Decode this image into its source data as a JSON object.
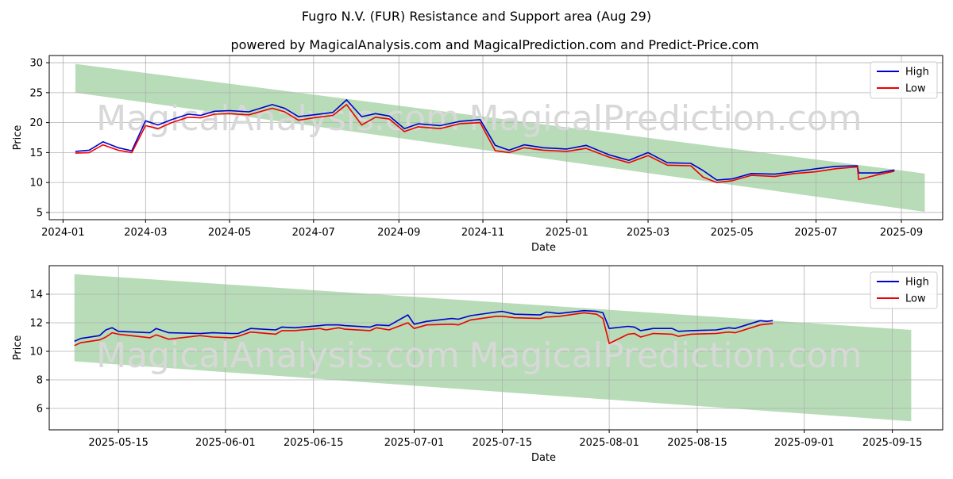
{
  "title": "Fugro N.V. (FUR) Resistance and Support area (Aug 29)",
  "subtitle": "powered by MagicalAnalysis.com and MagicalPrediction.com and Predict-Price.com",
  "watermark_left": "MagicalAnalysis.com",
  "watermark_right": "MagicalPrediction.com",
  "colors": {
    "high": "#0000cc",
    "low": "#ee0000",
    "band": "#9fd09f",
    "grid": "#b0b0b0"
  },
  "chart_data": [
    {
      "type": "line",
      "xlabel": "Date",
      "ylabel": "Price",
      "grid": true,
      "legend": "top-right",
      "x_domain": [
        "2023-12-22",
        "2025-10-01"
      ],
      "ylim": [
        3.8,
        31.2
      ],
      "x_ticks": [
        "2024-01",
        "2024-03",
        "2024-05",
        "2024-07",
        "2024-09",
        "2024-11",
        "2025-01",
        "2025-03",
        "2025-05",
        "2025-07",
        "2025-09"
      ],
      "x_tick_dates": [
        "2024-01-01",
        "2024-03-01",
        "2024-05-01",
        "2024-07-01",
        "2024-09-01",
        "2024-11-01",
        "2025-01-01",
        "2025-03-01",
        "2025-05-01",
        "2025-07-01",
        "2025-09-01"
      ],
      "y_ticks": [
        5,
        10,
        15,
        20,
        25,
        30
      ],
      "band": {
        "start": "2024-01-10",
        "end": "2025-09-18",
        "upper": [
          29.8,
          11.5
        ],
        "lower": [
          25.0,
          5.1
        ]
      },
      "series": [
        {
          "name": "High",
          "x": [
            "2024-01-10",
            "2024-01-20",
            "2024-01-30",
            "2024-02-10",
            "2024-02-20",
            "2024-03-01",
            "2024-03-10",
            "2024-03-20",
            "2024-04-01",
            "2024-04-10",
            "2024-04-20",
            "2024-05-01",
            "2024-05-15",
            "2024-06-01",
            "2024-06-10",
            "2024-06-20",
            "2024-07-01",
            "2024-07-15",
            "2024-07-25",
            "2024-08-05",
            "2024-08-15",
            "2024-08-25",
            "2024-09-05",
            "2024-09-15",
            "2024-10-01",
            "2024-10-15",
            "2024-10-30",
            "2024-11-10",
            "2024-11-20",
            "2024-12-01",
            "2024-12-15",
            "2025-01-01",
            "2025-01-15",
            "2025-02-01",
            "2025-02-15",
            "2025-03-01",
            "2025-03-15",
            "2025-04-01",
            "2025-04-10",
            "2025-04-20",
            "2025-05-01",
            "2025-05-15",
            "2025-06-01",
            "2025-06-15",
            "2025-07-01",
            "2025-07-15",
            "2025-07-31",
            "2025-08-01",
            "2025-08-15",
            "2025-08-27"
          ],
          "values": [
            15.2,
            15.4,
            16.8,
            15.8,
            15.3,
            20.3,
            19.6,
            20.5,
            21.4,
            21.2,
            21.9,
            22.0,
            21.8,
            23.0,
            22.4,
            21.0,
            21.3,
            21.7,
            23.8,
            21.0,
            21.5,
            21.1,
            19.0,
            19.8,
            19.5,
            20.2,
            20.5,
            16.2,
            15.4,
            16.3,
            15.8,
            15.6,
            16.2,
            14.6,
            13.7,
            15.0,
            13.3,
            13.2,
            12.0,
            10.4,
            10.6,
            11.5,
            11.4,
            11.8,
            12.3,
            12.7,
            12.8,
            11.6,
            11.6,
            12.1
          ]
        },
        {
          "name": "Low",
          "x": [
            "2024-01-10",
            "2024-01-20",
            "2024-01-30",
            "2024-02-10",
            "2024-02-20",
            "2024-03-01",
            "2024-03-10",
            "2024-03-20",
            "2024-04-01",
            "2024-04-10",
            "2024-04-20",
            "2024-05-01",
            "2024-05-15",
            "2024-06-01",
            "2024-06-10",
            "2024-06-20",
            "2024-07-01",
            "2024-07-15",
            "2024-07-25",
            "2024-08-05",
            "2024-08-15",
            "2024-08-25",
            "2024-09-05",
            "2024-09-15",
            "2024-10-01",
            "2024-10-15",
            "2024-10-30",
            "2024-11-10",
            "2024-11-20",
            "2024-12-01",
            "2024-12-15",
            "2025-01-01",
            "2025-01-15",
            "2025-02-01",
            "2025-02-15",
            "2025-03-01",
            "2025-03-15",
            "2025-04-01",
            "2025-04-10",
            "2025-04-20",
            "2025-05-01",
            "2025-05-15",
            "2025-06-01",
            "2025-06-15",
            "2025-07-01",
            "2025-07-15",
            "2025-07-31",
            "2025-08-01",
            "2025-08-15",
            "2025-08-27"
          ],
          "values": [
            14.9,
            15.0,
            16.3,
            15.4,
            15.0,
            19.5,
            19.0,
            20.0,
            20.9,
            20.8,
            21.4,
            21.5,
            21.3,
            22.4,
            21.8,
            20.4,
            20.8,
            21.2,
            23.0,
            19.6,
            20.9,
            20.6,
            18.5,
            19.3,
            19.0,
            19.8,
            20.0,
            15.3,
            15.0,
            15.8,
            15.4,
            15.2,
            15.7,
            14.2,
            13.3,
            14.5,
            12.9,
            12.8,
            10.9,
            10.0,
            10.3,
            11.2,
            11.0,
            11.5,
            11.8,
            12.3,
            12.6,
            10.5,
            11.3,
            11.9
          ]
        }
      ]
    },
    {
      "type": "line",
      "xlabel": "Date",
      "ylabel": "Price",
      "grid": true,
      "legend": "top-right",
      "x_domain": [
        "2025-05-04",
        "2025-09-23"
      ],
      "ylim": [
        4.5,
        16.0
      ],
      "x_ticks": [
        "2025-05-15",
        "2025-06-01",
        "2025-06-15",
        "2025-07-01",
        "2025-07-15",
        "2025-08-01",
        "2025-08-15",
        "2025-09-01",
        "2025-09-15"
      ],
      "x_tick_dates": [
        "2025-05-15",
        "2025-06-01",
        "2025-06-15",
        "2025-07-01",
        "2025-07-15",
        "2025-08-01",
        "2025-08-15",
        "2025-09-01",
        "2025-09-15"
      ],
      "y_ticks": [
        6,
        8,
        10,
        12,
        14
      ],
      "band": {
        "start": "2025-05-08",
        "end": "2025-09-18",
        "upper": [
          15.4,
          11.5
        ],
        "lower": [
          9.3,
          5.1
        ]
      },
      "series": [
        {
          "name": "High",
          "x": [
            "2025-05-08",
            "2025-05-09",
            "2025-05-12",
            "2025-05-13",
            "2025-05-14",
            "2025-05-15",
            "2025-05-20",
            "2025-05-21",
            "2025-05-23",
            "2025-05-28",
            "2025-05-30",
            "2025-06-02",
            "2025-06-03",
            "2025-06-05",
            "2025-06-09",
            "2025-06-10",
            "2025-06-12",
            "2025-06-16",
            "2025-06-17",
            "2025-06-19",
            "2025-06-20",
            "2025-06-24",
            "2025-06-25",
            "2025-06-27",
            "2025-06-30",
            "2025-07-01",
            "2025-07-03",
            "2025-07-07",
            "2025-07-08",
            "2025-07-10",
            "2025-07-14",
            "2025-07-15",
            "2025-07-17",
            "2025-07-21",
            "2025-07-22",
            "2025-07-24",
            "2025-07-28",
            "2025-07-30",
            "2025-07-31",
            "2025-08-01",
            "2025-08-04",
            "2025-08-05",
            "2025-08-06",
            "2025-08-08",
            "2025-08-11",
            "2025-08-12",
            "2025-08-14",
            "2025-08-18",
            "2025-08-20",
            "2025-08-21",
            "2025-08-25",
            "2025-08-26",
            "2025-08-27"
          ],
          "values": [
            10.7,
            10.9,
            11.1,
            11.5,
            11.65,
            11.4,
            11.3,
            11.6,
            11.3,
            11.25,
            11.3,
            11.25,
            11.25,
            11.6,
            11.5,
            11.7,
            11.65,
            11.8,
            11.85,
            11.85,
            11.8,
            11.7,
            11.85,
            11.8,
            12.55,
            11.9,
            12.1,
            12.3,
            12.25,
            12.5,
            12.75,
            12.8,
            12.6,
            12.55,
            12.75,
            12.65,
            12.85,
            12.8,
            12.7,
            11.6,
            11.75,
            11.7,
            11.45,
            11.6,
            11.6,
            11.4,
            11.45,
            11.5,
            11.65,
            11.6,
            12.15,
            12.1,
            12.15
          ]
        },
        {
          "name": "Low",
          "x": [
            "2025-05-08",
            "2025-05-09",
            "2025-05-12",
            "2025-05-13",
            "2025-05-14",
            "2025-05-15",
            "2025-05-20",
            "2025-05-21",
            "2025-05-23",
            "2025-05-28",
            "2025-05-30",
            "2025-06-02",
            "2025-06-03",
            "2025-06-05",
            "2025-06-09",
            "2025-06-10",
            "2025-06-12",
            "2025-06-16",
            "2025-06-17",
            "2025-06-19",
            "2025-06-20",
            "2025-06-24",
            "2025-06-25",
            "2025-06-27",
            "2025-06-30",
            "2025-07-01",
            "2025-07-03",
            "2025-07-07",
            "2025-07-08",
            "2025-07-10",
            "2025-07-14",
            "2025-07-15",
            "2025-07-17",
            "2025-07-21",
            "2025-07-22",
            "2025-07-24",
            "2025-07-28",
            "2025-07-30",
            "2025-07-31",
            "2025-08-01",
            "2025-08-04",
            "2025-08-05",
            "2025-08-06",
            "2025-08-08",
            "2025-08-11",
            "2025-08-12",
            "2025-08-14",
            "2025-08-18",
            "2025-08-20",
            "2025-08-21",
            "2025-08-25",
            "2025-08-26",
            "2025-08-27"
          ],
          "values": [
            10.4,
            10.6,
            10.8,
            11.0,
            11.3,
            11.2,
            10.95,
            11.15,
            10.85,
            11.1,
            11.0,
            10.95,
            11.05,
            11.35,
            11.2,
            11.45,
            11.45,
            11.6,
            11.5,
            11.65,
            11.55,
            11.45,
            11.65,
            11.5,
            12.0,
            11.6,
            11.85,
            11.9,
            11.85,
            12.2,
            12.45,
            12.45,
            12.35,
            12.3,
            12.4,
            12.45,
            12.7,
            12.6,
            12.3,
            10.55,
            11.2,
            11.25,
            11.0,
            11.25,
            11.2,
            11.05,
            11.2,
            11.25,
            11.35,
            11.3,
            11.85,
            11.9,
            11.95
          ]
        }
      ]
    }
  ]
}
